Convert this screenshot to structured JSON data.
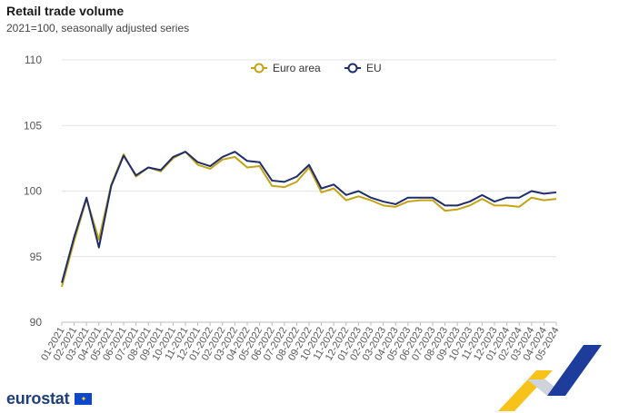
{
  "title": "Retail trade volume",
  "subtitle": "2021=100, seasonally adjusted series",
  "brand": {
    "name": "eurostat"
  },
  "chart_data": {
    "type": "line",
    "title": "Retail trade volume",
    "subtitle": "2021=100, seasonally adjusted series",
    "xlabel": "",
    "ylabel": "",
    "ylim": [
      90,
      110
    ],
    "yticks": [
      90,
      95,
      100,
      105,
      110
    ],
    "grid": true,
    "legend_position": "top-center",
    "categories": [
      "01-2021",
      "02-2021",
      "03-2021",
      "04-2021",
      "05-2021",
      "06-2021",
      "07-2021",
      "08-2021",
      "09-2021",
      "10-2021",
      "11-2021",
      "12-2021",
      "01-2022",
      "02-2022",
      "03-2022",
      "04-2022",
      "05-2022",
      "06-2022",
      "07-2022",
      "08-2022",
      "09-2022",
      "10-2022",
      "11-2022",
      "12-2022",
      "01-2023",
      "02-2023",
      "03-2023",
      "04-2023",
      "05-2023",
      "06-2023",
      "07-2023",
      "08-2023",
      "09-2023",
      "10-2023",
      "11-2023",
      "12-2023",
      "01-2024",
      "02-2024",
      "03-2024",
      "04-2024",
      "05-2024"
    ],
    "series": [
      {
        "name": "Euro area",
        "color": "#c5a314",
        "values": [
          92.7,
          96.2,
          99.4,
          96.3,
          100.5,
          102.8,
          101.1,
          101.8,
          101.5,
          102.5,
          103.0,
          102.0,
          101.7,
          102.4,
          102.6,
          101.8,
          101.9,
          100.4,
          100.3,
          100.7,
          101.8,
          99.9,
          100.2,
          99.3,
          99.6,
          99.3,
          98.9,
          98.8,
          99.2,
          99.3,
          99.3,
          98.5,
          98.6,
          98.9,
          99.4,
          98.9,
          98.9,
          98.8,
          99.5,
          99.3,
          99.4
        ]
      },
      {
        "name": "EU",
        "color": "#1e2d6b",
        "values": [
          93.0,
          96.5,
          99.5,
          95.7,
          100.4,
          102.7,
          101.2,
          101.8,
          101.6,
          102.6,
          103.0,
          102.2,
          101.9,
          102.6,
          103.0,
          102.3,
          102.2,
          100.8,
          100.7,
          101.1,
          102.0,
          100.2,
          100.5,
          99.7,
          100.0,
          99.5,
          99.2,
          99.0,
          99.5,
          99.5,
          99.5,
          98.9,
          98.9,
          99.2,
          99.7,
          99.2,
          99.5,
          99.5,
          100.0,
          99.8,
          99.9
        ]
      }
    ]
  }
}
